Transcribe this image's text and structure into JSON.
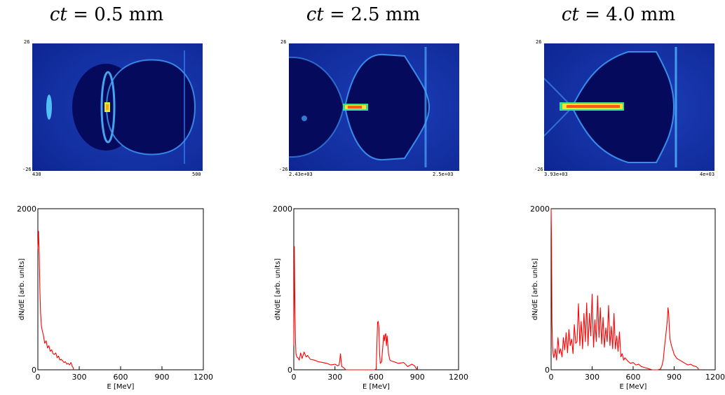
{
  "colors": {
    "curve": "#ff0000",
    "frame": "#000000",
    "field_bg": "#050a5c",
    "field_glow": "#2f8bff",
    "beam_hot": "#ff5a14",
    "beam_mid": "#ffe030",
    "beam_cool": "#39e08a"
  },
  "panels": [
    {
      "title_prefix": "ct",
      "title_value": "= 0.5 mm",
      "snapshot": {
        "y_top": "26",
        "y_bottom": "-26",
        "x_left": "430",
        "x_right": "500"
      }
    },
    {
      "title_prefix": "ct",
      "title_value": "= 2.5 mm",
      "snapshot": {
        "y_top": "26",
        "y_bottom": "-26",
        "x_left": "2.43e+03",
        "x_right": "2.5e+03"
      }
    },
    {
      "title_prefix": "ct",
      "title_value": "= 4.0 mm",
      "snapshot": {
        "y_top": "26",
        "y_bottom": "-26",
        "x_left": "3.93e+03",
        "x_right": "4e+03"
      }
    }
  ],
  "chart_data": [
    {
      "type": "line",
      "title": "",
      "xlabel": "E [MeV]",
      "ylabel": "dN/dE [arb. units]",
      "xlim": [
        0,
        1200
      ],
      "ylim": [
        0,
        2000
      ],
      "xticks": [
        "0",
        "300",
        "600",
        "900",
        "1200"
      ],
      "yticks": [
        "0",
        "2000"
      ],
      "grid": false,
      "series": [
        {
          "x": [
            0,
            5,
            10,
            15,
            20,
            25,
            30,
            40,
            50,
            60,
            70,
            80,
            90,
            100,
            110,
            120,
            130,
            140,
            150,
            160,
            170,
            180,
            190,
            200,
            210,
            220,
            230,
            240,
            250,
            255,
            258,
            260
          ],
          "y": [
            1500,
            1720,
            1400,
            950,
            700,
            560,
            500,
            430,
            330,
            360,
            270,
            300,
            230,
            250,
            200,
            190,
            210,
            150,
            170,
            120,
            130,
            110,
            90,
            100,
            70,
            80,
            60,
            90,
            40,
            30,
            10,
            0
          ]
        }
      ]
    },
    {
      "type": "line",
      "title": "",
      "xlabel": "E [MeV]",
      "ylabel": "dN/dE [arb. units]",
      "xlim": [
        0,
        1200
      ],
      "ylim": [
        0,
        2000
      ],
      "xticks": [
        "0",
        "300",
        "600",
        "900",
        "1200"
      ],
      "yticks": [
        "0",
        "2000"
      ],
      "grid": false,
      "series": [
        {
          "x": [
            0,
            4,
            8,
            12,
            16,
            22,
            30,
            40,
            50,
            60,
            75,
            90,
            100,
            120,
            150,
            180,
            210,
            240,
            270,
            300,
            320,
            330,
            335,
            340,
            345,
            350,
            360,
            380,
            400,
            430,
            460,
            500,
            540,
            570,
            590,
            600,
            605,
            610,
            615,
            620,
            625,
            630,
            640,
            650,
            655,
            660,
            665,
            670,
            675,
            680,
            690,
            700,
            710,
            730,
            760,
            800,
            830,
            860,
            880,
            890,
            895,
            900
          ],
          "y": [
            300,
            1530,
            800,
            350,
            200,
            160,
            150,
            120,
            210,
            140,
            220,
            160,
            180,
            130,
            120,
            100,
            90,
            80,
            60,
            70,
            50,
            60,
            120,
            200,
            100,
            40,
            30,
            0,
            0,
            0,
            0,
            0,
            0,
            0,
            0,
            10,
            300,
            590,
            600,
            520,
            200,
            80,
            100,
            330,
            430,
            360,
            430,
            450,
            300,
            420,
            200,
            120,
            110,
            100,
            80,
            90,
            40,
            70,
            50,
            20,
            10,
            0
          ]
        }
      ]
    },
    {
      "type": "line",
      "title": "",
      "xlabel": "E [MeV]",
      "ylabel": "dN/dE [arb. units]",
      "xlim": [
        0,
        1200
      ],
      "ylim": [
        0,
        2000
      ],
      "xticks": [
        "0",
        "300",
        "600",
        "900",
        "1200"
      ],
      "yticks": [
        "0",
        "2000"
      ],
      "grid": false,
      "series": [
        {
          "x": [
            0,
            3,
            6,
            10,
            15,
            20,
            30,
            40,
            50,
            60,
            70,
            80,
            90,
            100,
            110,
            120,
            130,
            140,
            150,
            160,
            170,
            180,
            190,
            200,
            210,
            220,
            230,
            240,
            250,
            260,
            270,
            280,
            290,
            300,
            310,
            320,
            330,
            340,
            350,
            360,
            370,
            380,
            390,
            400,
            410,
            420,
            430,
            440,
            450,
            460,
            470,
            480,
            490,
            500,
            510,
            520,
            530,
            540,
            560,
            580,
            600,
            620,
            640,
            660,
            680,
            700,
            720,
            740,
            760,
            780,
            800,
            810,
            820,
            830,
            840,
            850,
            855,
            860,
            865,
            870,
            880,
            890,
            900,
            920,
            940,
            960,
            980,
            1000,
            1020,
            1040,
            1060,
            1075,
            1080
          ],
          "y": [
            2000,
            1600,
            600,
            300,
            200,
            150,
            260,
            120,
            400,
            200,
            260,
            160,
            400,
            250,
            460,
            210,
            500,
            300,
            380,
            200,
            560,
            330,
            350,
            820,
            300,
            600,
            260,
            700,
            350,
            830,
            300,
            700,
            420,
            940,
            280,
            620,
            350,
            920,
            400,
            770,
            320,
            650,
            280,
            520,
            350,
            800,
            300,
            540,
            260,
            700,
            260,
            420,
            230,
            470,
            160,
            200,
            120,
            150,
            110,
            80,
            90,
            60,
            70,
            40,
            30,
            20,
            10,
            0,
            0,
            0,
            10,
            50,
            120,
            300,
            450,
            620,
            770,
            700,
            500,
            380,
            300,
            250,
            190,
            140,
            120,
            100,
            80,
            60,
            70,
            50,
            40,
            20,
            0
          ]
        }
      ]
    }
  ]
}
